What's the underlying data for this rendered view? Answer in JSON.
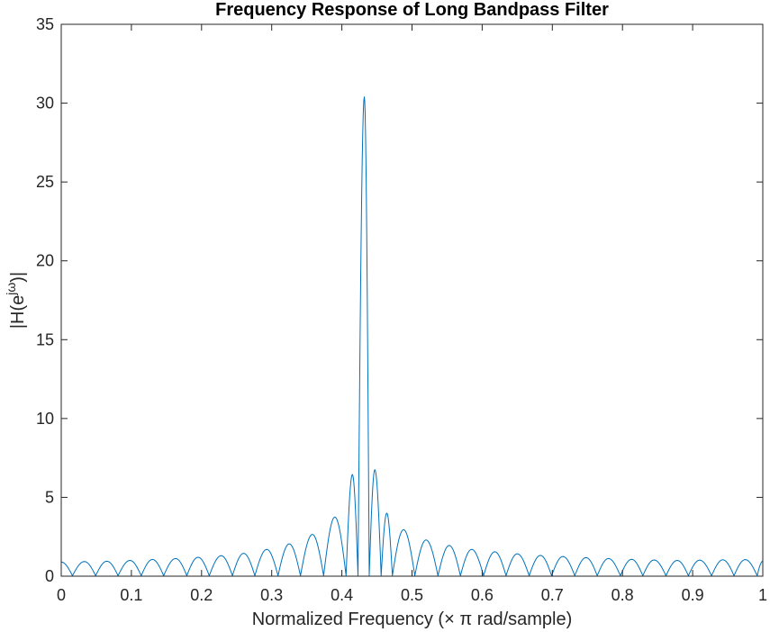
{
  "chart_data": {
    "type": "line",
    "title": "Frequency Response of Long Bandpass Filter",
    "xlabel": "Normalized Frequency (× π rad/sample)",
    "ylabel_main": "|H(e",
    "ylabel_sup": "jω",
    "ylabel_end": ")|",
    "xlim": [
      0,
      1
    ],
    "ylim": [
      0,
      35
    ],
    "xticks": [
      0,
      0.1,
      0.2,
      0.3,
      0.4,
      0.5,
      0.6,
      0.7,
      0.8,
      0.9,
      1
    ],
    "xtick_labels": [
      "0",
      "0.1",
      "0.2",
      "0.3",
      "0.4",
      "0.5",
      "0.6",
      "0.7",
      "0.8",
      "0.9",
      "1"
    ],
    "yticks": [
      0,
      5,
      10,
      15,
      20,
      25,
      30,
      35
    ],
    "ytick_labels": [
      "0",
      "5",
      "10",
      "15",
      "20",
      "25",
      "30",
      "35"
    ],
    "grid": false,
    "box": true,
    "line_color": "#0072BD",
    "series": [
      {
        "x": [
          0.0,
          0.016,
          0.033,
          0.049,
          0.065,
          0.081,
          0.098,
          0.114,
          0.13,
          0.146,
          0.163,
          0.179,
          0.195,
          0.211,
          0.228,
          0.244,
          0.26,
          0.276,
          0.293,
          0.309,
          0.325,
          0.341,
          0.358,
          0.374,
          0.39,
          0.406,
          0.415,
          0.423,
          0.432,
          0.439,
          0.447,
          0.456,
          0.464,
          0.472,
          0.488,
          0.504,
          0.52,
          0.537,
          0.553,
          0.569,
          0.585,
          0.602,
          0.618,
          0.634,
          0.65,
          0.667,
          0.683,
          0.699,
          0.715,
          0.732,
          0.748,
          0.764,
          0.78,
          0.797,
          0.813,
          0.829,
          0.845,
          0.862,
          0.878,
          0.894,
          0.91,
          0.927,
          0.943,
          0.959,
          0.975,
          0.992,
          1.0
        ],
        "y": [
          0.9,
          0.03,
          0.93,
          0.03,
          0.95,
          0.03,
          1.0,
          0.03,
          1.06,
          0.03,
          1.12,
          0.03,
          1.2,
          0.03,
          1.3,
          0.03,
          1.45,
          0.03,
          1.7,
          0.03,
          2.05,
          0.03,
          2.65,
          0.03,
          3.75,
          0.03,
          6.45,
          0.03,
          30.4,
          0.03,
          6.75,
          0.03,
          4.0,
          0.03,
          2.95,
          0.03,
          2.3,
          0.03,
          1.95,
          0.03,
          1.7,
          0.03,
          1.55,
          0.03,
          1.42,
          0.03,
          1.32,
          0.03,
          1.25,
          0.03,
          1.18,
          0.03,
          1.12,
          0.03,
          1.07,
          0.03,
          1.03,
          0.03,
          1.0,
          0.03,
          1.02,
          0.03,
          1.04,
          0.03,
          1.05,
          0.03,
          0.95
        ]
      }
    ]
  }
}
